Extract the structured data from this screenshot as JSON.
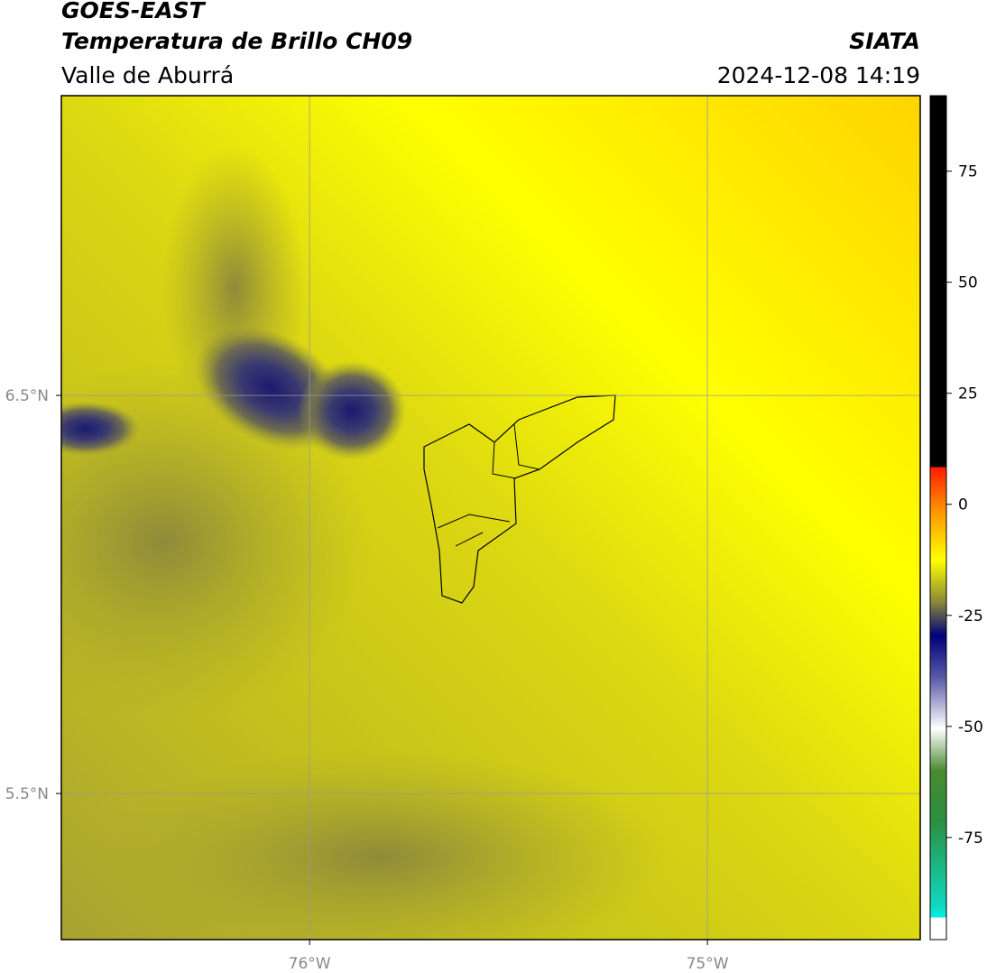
{
  "header": {
    "title": "GOES-EAST",
    "subtitle": "Temperatura de Brillo CH09",
    "region": "Valle de Aburrá",
    "source": "SIATA",
    "datetime": "2024-12-08 14:19"
  },
  "map": {
    "xlim": [
      -76.624,
      -74.465
    ],
    "ylim": [
      5.133,
      7.253
    ],
    "xticks": [
      {
        "value": -76,
        "label": "76°W"
      },
      {
        "value": -75,
        "label": "75°W"
      }
    ],
    "yticks": [
      {
        "value": 6.5,
        "label": "6.5°N"
      },
      {
        "value": 5.5,
        "label": "5.5°N"
      }
    ],
    "grid": true
  },
  "colorbar": {
    "lim": [
      -98,
      92
    ],
    "ticks": [
      75,
      50,
      25,
      0,
      -25,
      -50,
      -75
    ]
  }
}
